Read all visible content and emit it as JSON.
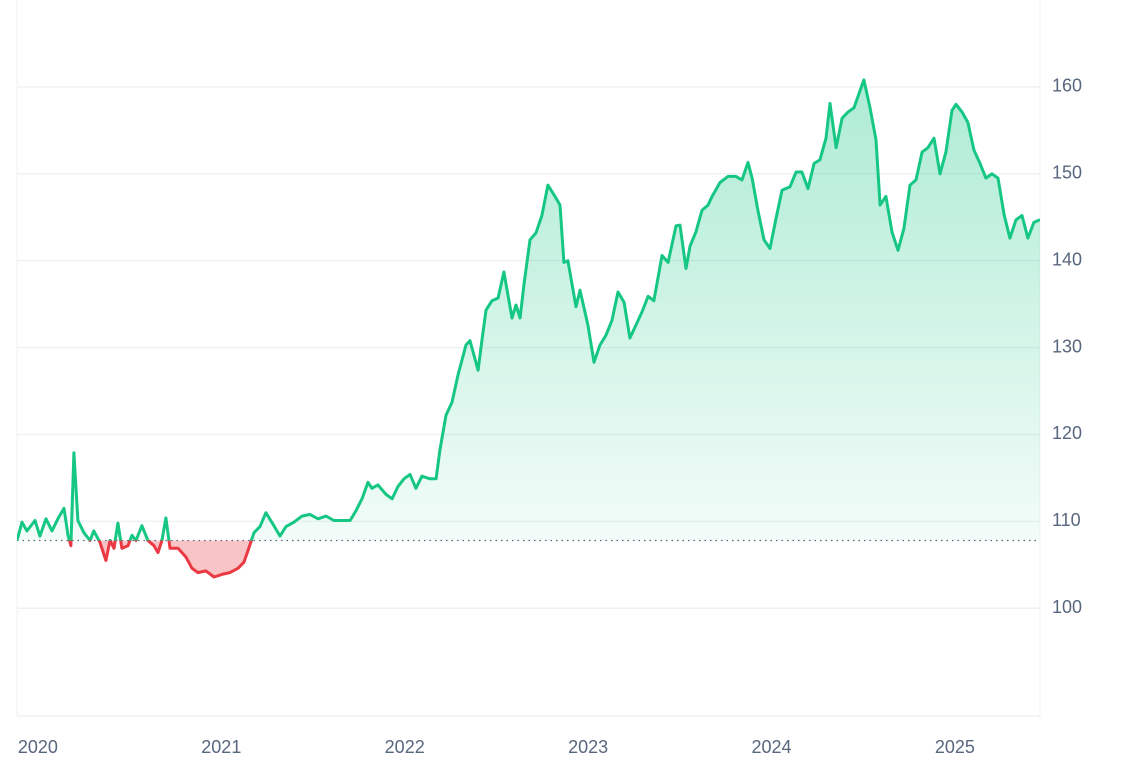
{
  "chart_data": {
    "type": "line",
    "up_color": "#16c784",
    "down_color": "#ea3943",
    "baseline": 107.8,
    "grid": true,
    "xlim": [
      2019.886,
      2025.464
    ],
    "xticks": [
      2020,
      2021,
      2022,
      2023,
      2024,
      2025
    ],
    "ylim": [
      87.6,
      170
    ],
    "yticks": [
      100,
      110,
      120,
      130,
      140,
      150,
      160
    ],
    "x": [
      2019.886,
      2019.913,
      2019.94,
      2019.984,
      2020.011,
      2020.044,
      2020.077,
      2020.109,
      2020.142,
      2020.164,
      2020.18,
      2020.196,
      2020.218,
      2020.251,
      2020.284,
      2020.305,
      2020.338,
      2020.371,
      2020.393,
      2020.415,
      2020.436,
      2020.458,
      2020.491,
      2020.513,
      2020.535,
      2020.567,
      2020.6,
      2020.633,
      2020.655,
      2020.676,
      2020.698,
      2020.72,
      2020.764,
      2020.807,
      2020.84,
      2020.873,
      2020.916,
      2020.96,
      2021.003,
      2021.047,
      2021.091,
      2021.123,
      2021.145,
      2021.178,
      2021.211,
      2021.243,
      2021.287,
      2021.32,
      2021.353,
      2021.396,
      2021.44,
      2021.483,
      2021.527,
      2021.571,
      2021.614,
      2021.658,
      2021.702,
      2021.734,
      2021.767,
      2021.8,
      2021.821,
      2021.854,
      2021.898,
      2021.931,
      2021.963,
      2021.996,
      2022.029,
      2022.061,
      2022.094,
      2022.138,
      2022.171,
      2022.192,
      2022.225,
      2022.258,
      2022.29,
      2022.334,
      2022.356,
      2022.4,
      2022.421,
      2022.443,
      2022.476,
      2022.509,
      2022.541,
      2022.585,
      2022.607,
      2022.629,
      2022.65,
      2022.683,
      2022.716,
      2022.748,
      2022.781,
      2022.825,
      2022.847,
      2022.868,
      2022.89,
      2022.934,
      2022.956,
      2022.999,
      2023.032,
      2023.065,
      2023.097,
      2023.13,
      2023.163,
      2023.196,
      2023.228,
      2023.261,
      2023.294,
      2023.327,
      2023.359,
      2023.403,
      2023.436,
      2023.479,
      2023.501,
      2023.534,
      2023.556,
      2023.588,
      2023.621,
      2023.654,
      2023.676,
      2023.719,
      2023.763,
      2023.806,
      2023.839,
      2023.872,
      2023.894,
      2023.926,
      2023.959,
      2023.992,
      2024.025,
      2024.057,
      2024.101,
      2024.134,
      2024.166,
      2024.199,
      2024.232,
      2024.264,
      2024.297,
      2024.319,
      2024.352,
      2024.385,
      2024.417,
      2024.45,
      2024.483,
      2024.504,
      2024.537,
      2024.57,
      2024.592,
      2024.624,
      2024.657,
      2024.69,
      2024.722,
      2024.755,
      2024.788,
      2024.821,
      2024.853,
      2024.886,
      2024.919,
      2024.951,
      2024.984,
      2025.006,
      2025.039,
      2025.071,
      2025.104,
      2025.137,
      2025.169,
      2025.202,
      2025.235,
      2025.268,
      2025.3,
      2025.333,
      2025.366,
      2025.398,
      2025.431,
      2025.464
    ],
    "values": [
      107.8,
      109.9,
      108.9,
      110.1,
      108.3,
      110.3,
      108.9,
      110.3,
      111.5,
      108.4,
      107.2,
      117.9,
      110.1,
      108.7,
      107.8,
      108.9,
      107.6,
      105.5,
      107.8,
      106.9,
      109.8,
      106.9,
      107.2,
      108.4,
      107.8,
      109.5,
      107.8,
      107.2,
      106.4,
      107.8,
      110.4,
      106.9,
      106.9,
      105.9,
      104.6,
      104.1,
      104.3,
      103.6,
      103.9,
      104.1,
      104.6,
      105.3,
      106.6,
      108.7,
      109.4,
      111.0,
      109.5,
      108.3,
      109.4,
      109.9,
      110.6,
      110.8,
      110.3,
      110.6,
      110.1,
      110.1,
      110.1,
      111.2,
      112.6,
      114.5,
      113.8,
      114.2,
      113.1,
      112.6,
      114.0,
      114.9,
      115.4,
      113.8,
      115.2,
      114.9,
      114.9,
      118.2,
      122.2,
      123.7,
      126.8,
      130.3,
      130.8,
      127.4,
      130.8,
      134.3,
      135.4,
      135.7,
      138.7,
      133.4,
      134.9,
      133.4,
      137.2,
      142.4,
      143.2,
      145.2,
      148.7,
      147.2,
      146.4,
      139.8,
      140.0,
      134.7,
      136.6,
      132.6,
      128.3,
      130.3,
      131.4,
      133.1,
      136.4,
      135.2,
      131.1,
      132.6,
      134.1,
      135.9,
      135.4,
      140.6,
      139.8,
      144.0,
      144.1,
      139.1,
      141.7,
      143.3,
      145.8,
      146.4,
      147.4,
      149.0,
      149.7,
      149.7,
      149.3,
      151.3,
      149.5,
      145.8,
      142.4,
      141.4,
      144.9,
      148.1,
      148.5,
      150.2,
      150.2,
      148.3,
      151.2,
      151.6,
      154.1,
      158.1,
      153.0,
      156.4,
      157.1,
      157.6,
      159.6,
      160.8,
      157.6,
      153.9,
      146.4,
      147.4,
      143.3,
      141.2,
      143.7,
      148.7,
      149.3,
      152.5,
      153.0,
      154.1,
      150.0,
      152.5,
      157.3,
      158.0,
      157.1,
      155.9,
      152.7,
      151.2,
      149.5,
      150.0,
      149.5,
      145.3,
      142.6,
      144.7,
      145.2,
      142.6,
      144.4,
      144.7
    ]
  }
}
